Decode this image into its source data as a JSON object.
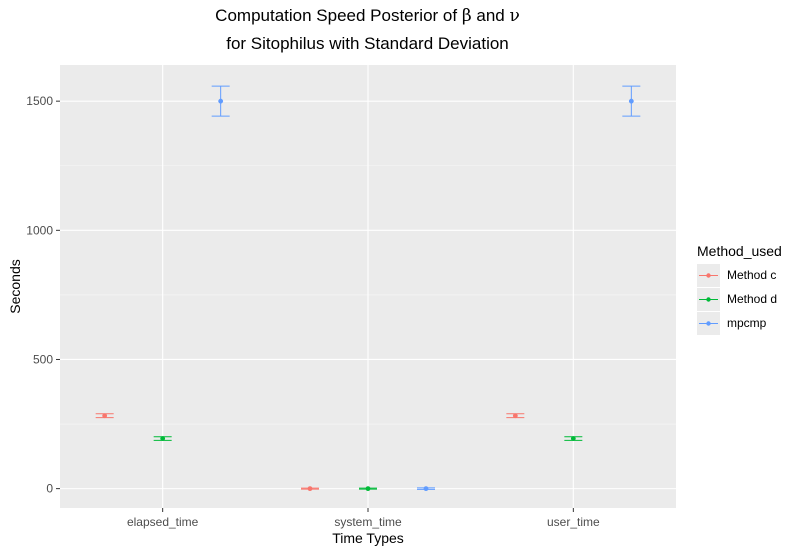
{
  "chart_data": {
    "type": "errorbar",
    "title_line1_prefix": "Computation Speed Posterior of ",
    "title_beta": "β",
    "title_and": " and ",
    "title_nu": "ν",
    "title_line2": "for Sitophilus with Standard Deviation",
    "xlabel": "Time Types",
    "ylabel": "Seconds",
    "categories": [
      "elapsed_time",
      "system_time",
      "user_time"
    ],
    "y_ticks": [
      0,
      500,
      1000,
      1500
    ],
    "ylim": [
      -75,
      1640
    ],
    "legend_title": "Method_used",
    "series": [
      {
        "name": "Method c",
        "color": "#F8766D",
        "values": [
          282,
          0,
          282
        ],
        "lower": [
          275,
          -2,
          275
        ],
        "upper": [
          290,
          2,
          290
        ]
      },
      {
        "name": "Method d",
        "color": "#00BA38",
        "values": [
          194,
          0,
          194
        ],
        "lower": [
          187,
          -2,
          187
        ],
        "upper": [
          201,
          2,
          201
        ]
      },
      {
        "name": "mpcmp",
        "color": "#619CFF",
        "values": [
          1500,
          0,
          1500
        ],
        "lower": [
          1442,
          -3,
          1442
        ],
        "upper": [
          1558,
          3,
          1558
        ]
      }
    ]
  }
}
